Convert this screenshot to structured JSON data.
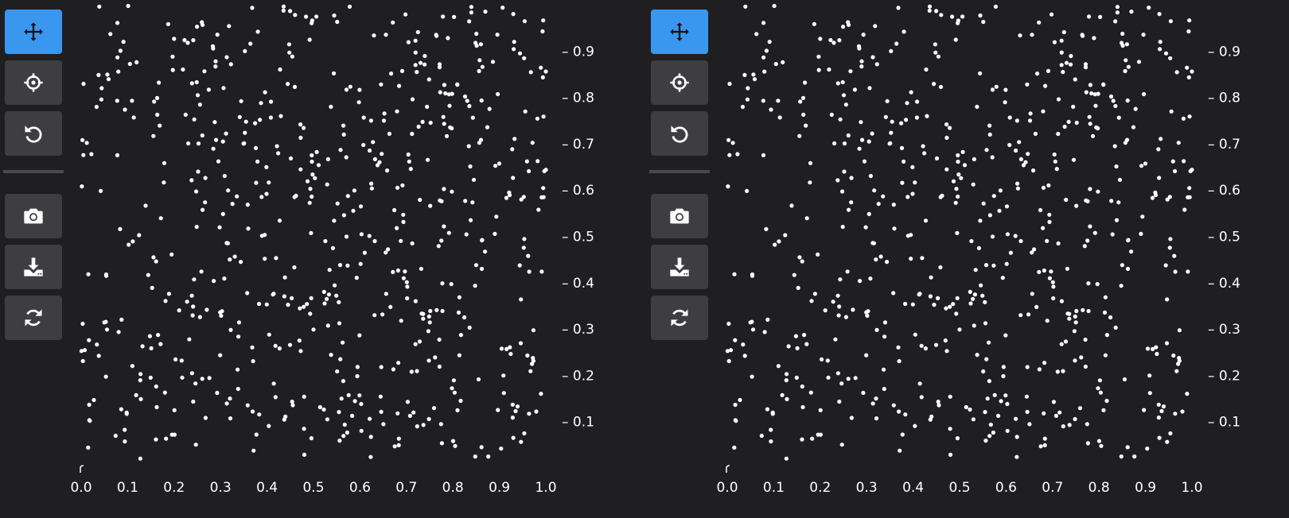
{
  "panels": [
    {
      "toolbar": {
        "tools": [
          {
            "name": "pan",
            "icon": "move-icon",
            "active": true
          },
          {
            "name": "crosshair",
            "icon": "crosshair-icon",
            "active": false
          },
          {
            "name": "reset",
            "icon": "undo-icon",
            "active": false
          },
          {
            "name": "screenshot",
            "icon": "camera-icon",
            "active": false
          },
          {
            "name": "download",
            "icon": "download-icon",
            "active": false
          },
          {
            "name": "refresh",
            "icon": "refresh-icon",
            "active": false
          }
        ]
      }
    },
    {
      "toolbar": {
        "tools": [
          {
            "name": "pan",
            "icon": "move-icon",
            "active": true
          },
          {
            "name": "crosshair",
            "icon": "crosshair-icon",
            "active": false
          },
          {
            "name": "reset",
            "icon": "undo-icon",
            "active": false
          },
          {
            "name": "screenshot",
            "icon": "camera-icon",
            "active": false
          },
          {
            "name": "download",
            "icon": "download-icon",
            "active": false
          },
          {
            "name": "refresh",
            "icon": "refresh-icon",
            "active": false
          }
        ]
      }
    }
  ],
  "colors": {
    "background": "#1f1f21",
    "button": "#3e3e41",
    "button_active": "#3a97f0",
    "point": "#ffffff"
  },
  "chart_data": [
    {
      "type": "scatter",
      "xlim": [
        0.0,
        1.0
      ],
      "ylim": [
        0.0,
        1.0
      ],
      "x_ticks": [
        "0.0",
        "0.1",
        "0.2",
        "0.3",
        "0.4",
        "0.5",
        "0.6",
        "0.7",
        "0.8",
        "0.9",
        "1.0"
      ],
      "y_ticks": [
        "0.1",
        "0.2",
        "0.3",
        "0.4",
        "0.5",
        "0.6",
        "0.7",
        "0.8",
        "0.9"
      ],
      "y_tick_prefix": "– ",
      "grid": false,
      "points": "approximately 600 uniformly scattered points in [0,1]x[0,1]"
    },
    {
      "type": "scatter",
      "xlim": [
        0.0,
        1.0
      ],
      "ylim": [
        0.0,
        1.0
      ],
      "x_ticks": [
        "0.0",
        "0.1",
        "0.2",
        "0.3",
        "0.4",
        "0.5",
        "0.6",
        "0.7",
        "0.8",
        "0.9",
        "1.0"
      ],
      "y_ticks": [
        "0.1",
        "0.2",
        "0.3",
        "0.4",
        "0.5",
        "0.6",
        "0.7",
        "0.8",
        "0.9"
      ],
      "y_tick_prefix": "– ",
      "grid": false,
      "points": "same as left panel"
    }
  ]
}
